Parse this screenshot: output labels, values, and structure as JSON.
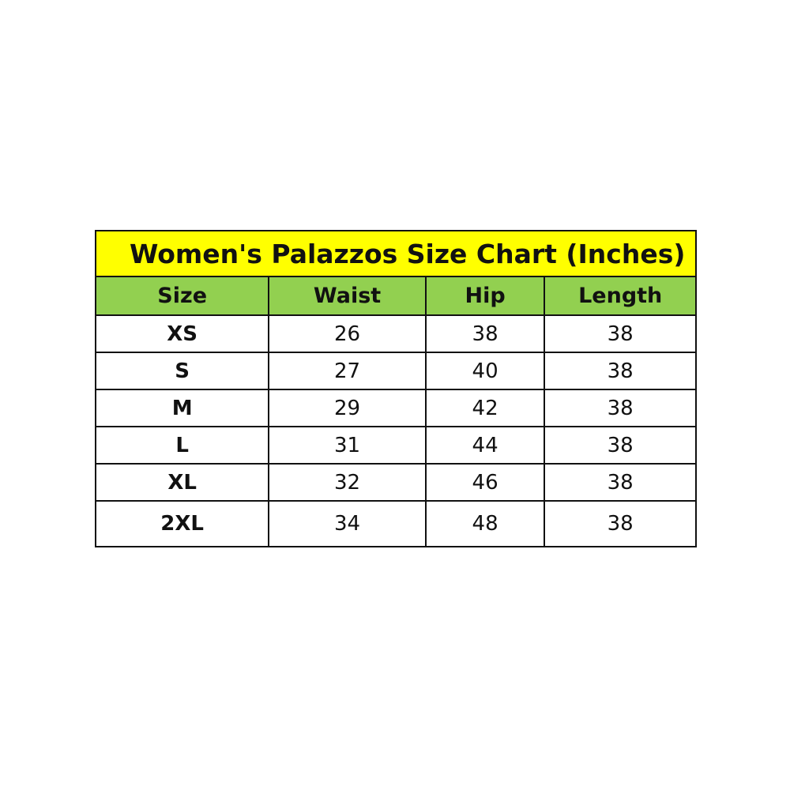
{
  "title": "Women's Palazzos Size Chart (Inches)",
  "colors": {
    "title_bg": "#ffff00",
    "header_bg": "#92d050"
  },
  "headers": [
    "Size",
    "Waist",
    "Hip",
    "Length"
  ],
  "rows": [
    [
      "XS",
      "26",
      "38",
      "38"
    ],
    [
      "S",
      "27",
      "40",
      "38"
    ],
    [
      "M",
      "29",
      "42",
      "38"
    ],
    [
      "L",
      "31",
      "44",
      "38"
    ],
    [
      "XL",
      "32",
      "46",
      "38"
    ],
    [
      "2XL",
      "34",
      "48",
      "38"
    ]
  ]
}
